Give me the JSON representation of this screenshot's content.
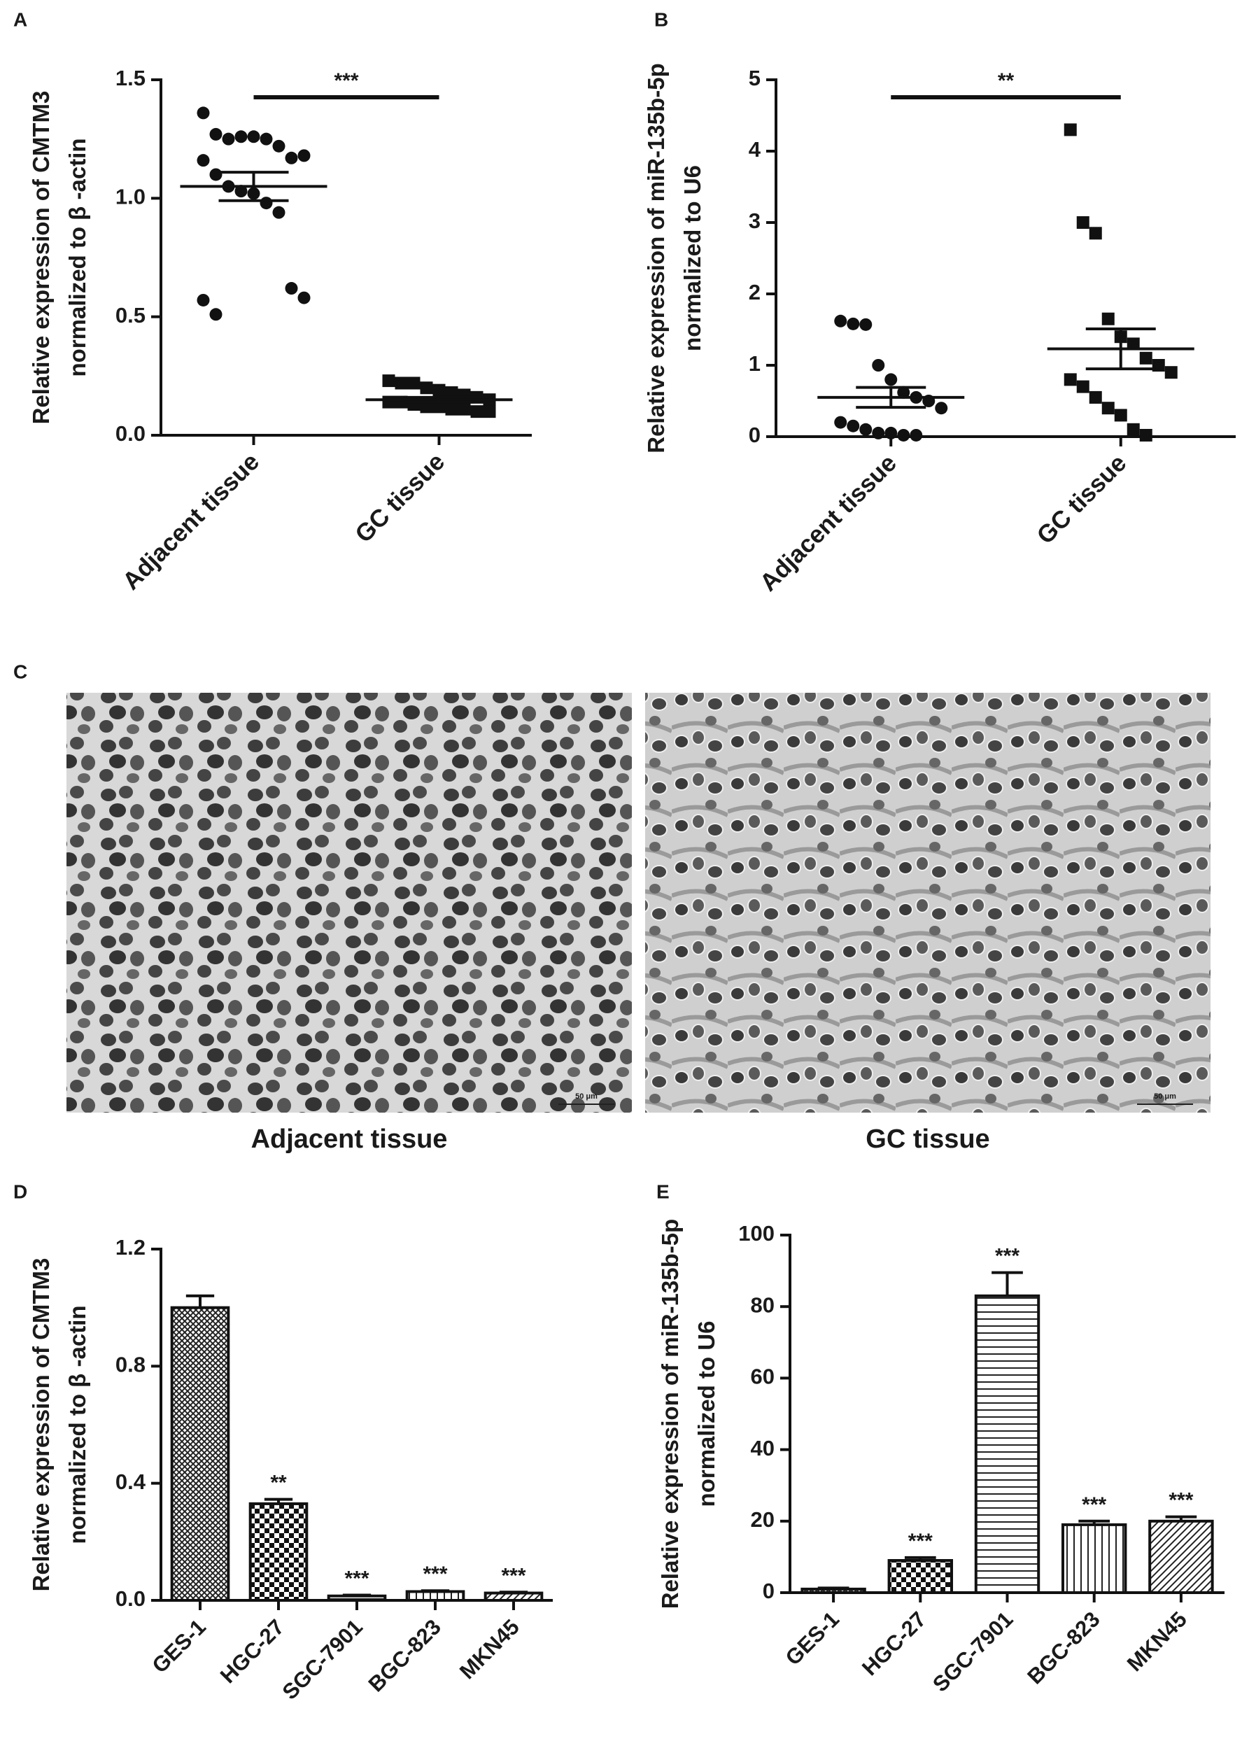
{
  "chart_data": [
    {
      "type": "dot",
      "panel": "A",
      "ylabel": [
        "Relative expression of  CMTM3",
        "normalized to β -actin"
      ],
      "categories": [
        "Adjacent tissue",
        "GC tissue"
      ],
      "markers": [
        "circle",
        "square"
      ],
      "points": [
        [
          1.36,
          1.27,
          1.25,
          1.26,
          1.26,
          1.25,
          1.22,
          1.17,
          1.18,
          1.16,
          1.1,
          1.05,
          1.03,
          1.02,
          0.98,
          0.94,
          0.62,
          0.58,
          0.57,
          0.51
        ],
        [
          0.23,
          0.22,
          0.22,
          0.2,
          0.19,
          0.18,
          0.17,
          0.16,
          0.15,
          0.14,
          0.14,
          0.13,
          0.12,
          0.12,
          0.11,
          0.11,
          0.1,
          0.1
        ]
      ],
      "means": [
        1.05,
        0.15
      ],
      "sems": [
        0.06,
        0.01
      ],
      "annotation": "***",
      "ylim": [
        0,
        1.5
      ],
      "yticks": [
        {
          "value": 0,
          "label": "0.0"
        },
        0.5,
        {
          "value": 1,
          "label": "1.0"
        },
        1.5
      ]
    },
    {
      "type": "dot",
      "panel": "B",
      "ylabel": [
        "Relative expression of  miR-135b-5p",
        "normalized to U6"
      ],
      "categories": [
        "Adjacent tissue",
        "GC tissue"
      ],
      "markers": [
        "circle",
        "square"
      ],
      "points": [
        [
          1.62,
          1.58,
          1.57,
          1.0,
          0.8,
          0.62,
          0.55,
          0.5,
          0.4,
          0.2,
          0.15,
          0.1,
          0.05,
          0.05,
          0.02,
          0.02
        ],
        [
          4.3,
          3.0,
          2.85,
          1.65,
          1.4,
          1.3,
          1.1,
          1.0,
          0.9,
          0.8,
          0.7,
          0.55,
          0.4,
          0.3,
          0.1,
          0.02
        ]
      ],
      "means": [
        0.55,
        1.23
      ],
      "sems": [
        0.14,
        0.28
      ],
      "annotation": "**",
      "ylim": [
        0,
        5
      ],
      "yticks": [
        0,
        1,
        2,
        3,
        4,
        5
      ]
    },
    {
      "type": "bar",
      "panel": "D",
      "ylabel": [
        "Relative expression of  CMTM3",
        "normalized to β -actin"
      ],
      "categories": [
        "GES-1",
        "HGC-27",
        "SGC-7901",
        "BGC-823",
        "MKN45"
      ],
      "values": [
        1.0,
        0.33,
        0.015,
        0.03,
        0.025
      ],
      "errors": [
        0.04,
        0.015,
        0.003,
        0.003,
        0.003
      ],
      "annotations": [
        null,
        "**",
        "***",
        "***",
        "***"
      ],
      "patterns": [
        "crosshatch",
        "checker",
        "horizontal",
        "vertical",
        "diagonal"
      ],
      "ylim": [
        0,
        1.2
      ],
      "yticks": [
        {
          "value": 0,
          "label": "0.0"
        },
        0.4,
        0.8,
        1.2
      ]
    },
    {
      "type": "bar",
      "panel": "E",
      "ylabel": [
        "Relative expression of  miR-135b-5p",
        "normalized to U6"
      ],
      "categories": [
        "GES-1",
        "HGC-27",
        "SGC-7901",
        "BGC-823",
        "MKN45"
      ],
      "values": [
        1,
        9,
        83,
        19,
        20
      ],
      "errors": [
        0.3,
        0.8,
        6.5,
        1,
        1.2
      ],
      "annotations": [
        null,
        "***",
        "***",
        "***",
        "***"
      ],
      "patterns": [
        "crosshatch",
        "checker",
        "horizontal",
        "vertical",
        "diagonal"
      ],
      "ylim": [
        0,
        100
      ],
      "yticks": [
        0,
        20,
        40,
        60,
        80,
        100
      ]
    }
  ],
  "panel_c": {
    "panel": "C",
    "images": [
      {
        "caption": "Adjacent tissue",
        "scale_bar": "50 μm"
      },
      {
        "caption": "GC tissue",
        "scale_bar": "50 μm"
      }
    ]
  }
}
